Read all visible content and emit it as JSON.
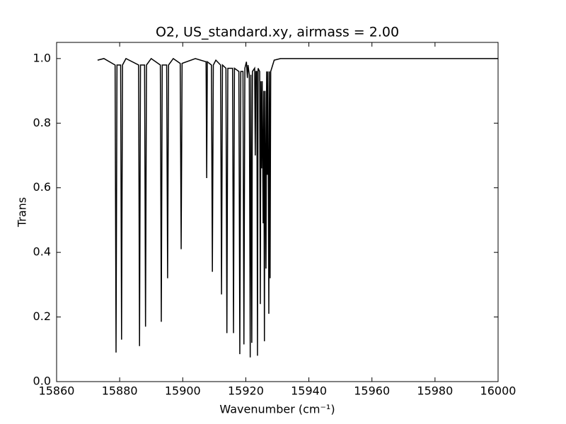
{
  "chart_data": {
    "type": "line",
    "title": "O2, US_standard.xy, airmass = 2.00",
    "x_label": "Wavenumber (cm⁻¹)",
    "y_label": "Trans",
    "color": "#000000",
    "x": [
      15873.0,
      15875,
      15878.55,
      15878.85,
      15879.15,
      15880.3,
      15880.6,
      15880.9,
      15882,
      15886.0,
      15886.3,
      15886.6,
      15887.9,
      15888.2,
      15888.5,
      15890,
      15892.9,
      15893.2,
      15893.5,
      15894.9,
      15895.2,
      15895.5,
      15897,
      15899.2,
      15899.5,
      15899.8,
      15904,
      15907.4,
      15907.6,
      15907.8,
      15909.1,
      15909.4,
      15909.7,
      15910.5,
      15912.0,
      15912.3,
      15912.6,
      15913.7,
      15914.0,
      15914.3,
      15915.8,
      15916.1,
      15916.4,
      15917.8,
      15918.1,
      15918.4,
      15919.1,
      15919.4,
      15919.7,
      15920.2,
      15920.5,
      15920.7,
      15921.1,
      15921.4,
      15921.6,
      15921.9,
      15922.1,
      15922.8,
      15923.0,
      15923.2,
      15923.5,
      15923.7,
      15923.9,
      15924.4,
      15924.6,
      15924.8,
      15925.0,
      15925.2,
      15925.5,
      15925.7,
      15925.9,
      15926.1,
      15926.4,
      15926.6,
      15926.8,
      15927.0,
      15927.3,
      15927.5,
      15927.7,
      15927.9,
      15929,
      15931,
      16000
    ],
    "values": [
      0.995,
      1.0,
      0.98,
      0.09,
      0.98,
      0.98,
      0.13,
      0.98,
      1.0,
      0.98,
      0.11,
      0.98,
      0.98,
      0.17,
      0.98,
      1.0,
      0.98,
      0.185,
      0.98,
      0.98,
      0.32,
      0.98,
      1.0,
      0.985,
      0.41,
      0.985,
      1.0,
      0.99,
      0.63,
      0.99,
      0.98,
      0.34,
      0.98,
      0.995,
      0.98,
      0.27,
      0.98,
      0.97,
      0.15,
      0.97,
      0.97,
      0.15,
      0.97,
      0.96,
      0.085,
      0.96,
      0.96,
      0.115,
      0.97,
      0.99,
      0.94,
      0.98,
      0.95,
      0.075,
      0.95,
      0.12,
      0.96,
      0.97,
      0.7,
      0.96,
      0.96,
      0.08,
      0.97,
      0.96,
      0.24,
      0.93,
      0.66,
      0.93,
      0.49,
      0.9,
      0.125,
      0.9,
      0.35,
      0.96,
      0.64,
      0.96,
      0.21,
      0.96,
      0.32,
      0.96,
      0.995,
      1.0,
      1.0
    ],
    "xlim": [
      15860,
      16000
    ],
    "ylim": [
      0,
      1.05
    ],
    "xticks": [
      15860,
      15880,
      15900,
      15920,
      15940,
      15960,
      15980,
      16000
    ],
    "yticks": [
      {
        "value": 0,
        "label": "0.0"
      },
      0.2,
      0.4,
      0.6,
      0.8,
      {
        "value": 1,
        "label": "1.0"
      }
    ]
  }
}
